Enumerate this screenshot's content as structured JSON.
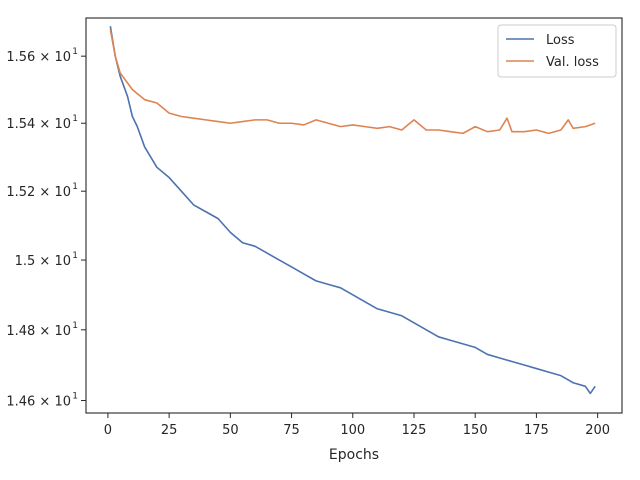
{
  "chart_data": {
    "type": "line",
    "title": "",
    "xlabel": "Epochs",
    "ylabel": "",
    "xlim": [
      -8.95,
      209.95
    ],
    "ylim": [
      14.565,
      15.715
    ],
    "yscale": "log",
    "grid": false,
    "legend_position": "top-right",
    "x_ticks": [
      {
        "value": 0,
        "label": "0"
      },
      {
        "value": 25,
        "label": "25"
      },
      {
        "value": 50,
        "label": "50"
      },
      {
        "value": 75,
        "label": "75"
      },
      {
        "value": 100,
        "label": "100"
      },
      {
        "value": 125,
        "label": "125"
      },
      {
        "value": 150,
        "label": "150"
      },
      {
        "value": 175,
        "label": "175"
      },
      {
        "value": 200,
        "label": "200"
      }
    ],
    "y_ticks": [
      {
        "value": 14.6,
        "label": "1.46 × 10",
        "exp": "1"
      },
      {
        "value": 14.8,
        "label": "1.48 × 10",
        "exp": "1"
      },
      {
        "value": 15.0,
        "label": "1.5 × 10",
        "exp": "1"
      },
      {
        "value": 15.2,
        "label": "1.52 × 10",
        "exp": "1"
      },
      {
        "value": 15.4,
        "label": "1.54 × 10",
        "exp": "1"
      },
      {
        "value": 15.6,
        "label": "1.56 × 10",
        "exp": "1"
      }
    ],
    "series": [
      {
        "name": "Loss",
        "color": "#4c72b0",
        "points": [
          [
            1,
            15.69
          ],
          [
            3,
            15.6
          ],
          [
            5,
            15.54
          ],
          [
            8,
            15.48
          ],
          [
            10,
            15.42
          ],
          [
            12,
            15.39
          ],
          [
            15,
            15.33
          ],
          [
            20,
            15.27
          ],
          [
            25,
            15.24
          ],
          [
            30,
            15.2
          ],
          [
            35,
            15.16
          ],
          [
            40,
            15.14
          ],
          [
            45,
            15.12
          ],
          [
            50,
            15.08
          ],
          [
            55,
            15.05
          ],
          [
            60,
            15.04
          ],
          [
            65,
            15.02
          ],
          [
            70,
            15.0
          ],
          [
            75,
            14.98
          ],
          [
            80,
            14.96
          ],
          [
            85,
            14.94
          ],
          [
            90,
            14.93
          ],
          [
            95,
            14.92
          ],
          [
            100,
            14.9
          ],
          [
            105,
            14.88
          ],
          [
            110,
            14.86
          ],
          [
            115,
            14.85
          ],
          [
            120,
            14.84
          ],
          [
            125,
            14.82
          ],
          [
            130,
            14.8
          ],
          [
            135,
            14.78
          ],
          [
            140,
            14.77
          ],
          [
            145,
            14.76
          ],
          [
            150,
            14.75
          ],
          [
            155,
            14.73
          ],
          [
            160,
            14.72
          ],
          [
            165,
            14.71
          ],
          [
            170,
            14.7
          ],
          [
            175,
            14.69
          ],
          [
            180,
            14.68
          ],
          [
            185,
            14.67
          ],
          [
            190,
            14.65
          ],
          [
            195,
            14.64
          ],
          [
            197,
            14.62
          ],
          [
            199,
            14.64
          ]
        ]
      },
      {
        "name": "Val. loss",
        "color": "#dd8452",
        "points": [
          [
            1,
            15.68
          ],
          [
            3,
            15.6
          ],
          [
            5,
            15.55
          ],
          [
            8,
            15.52
          ],
          [
            10,
            15.5
          ],
          [
            15,
            15.47
          ],
          [
            20,
            15.46
          ],
          [
            25,
            15.43
          ],
          [
            30,
            15.42
          ],
          [
            35,
            15.415
          ],
          [
            40,
            15.41
          ],
          [
            45,
            15.405
          ],
          [
            50,
            15.4
          ],
          [
            55,
            15.405
          ],
          [
            60,
            15.41
          ],
          [
            65,
            15.41
          ],
          [
            70,
            15.4
          ],
          [
            75,
            15.4
          ],
          [
            80,
            15.395
          ],
          [
            85,
            15.41
          ],
          [
            90,
            15.4
          ],
          [
            95,
            15.39
          ],
          [
            100,
            15.395
          ],
          [
            105,
            15.39
          ],
          [
            110,
            15.385
          ],
          [
            115,
            15.39
          ],
          [
            120,
            15.38
          ],
          [
            125,
            15.41
          ],
          [
            130,
            15.38
          ],
          [
            135,
            15.38
          ],
          [
            140,
            15.375
          ],
          [
            145,
            15.37
          ],
          [
            150,
            15.39
          ],
          [
            155,
            15.375
          ],
          [
            160,
            15.38
          ],
          [
            163,
            15.415
          ],
          [
            165,
            15.375
          ],
          [
            170,
            15.375
          ],
          [
            175,
            15.38
          ],
          [
            180,
            15.37
          ],
          [
            185,
            15.38
          ],
          [
            188,
            15.41
          ],
          [
            190,
            15.385
          ],
          [
            195,
            15.39
          ],
          [
            199,
            15.4
          ]
        ]
      }
    ]
  }
}
